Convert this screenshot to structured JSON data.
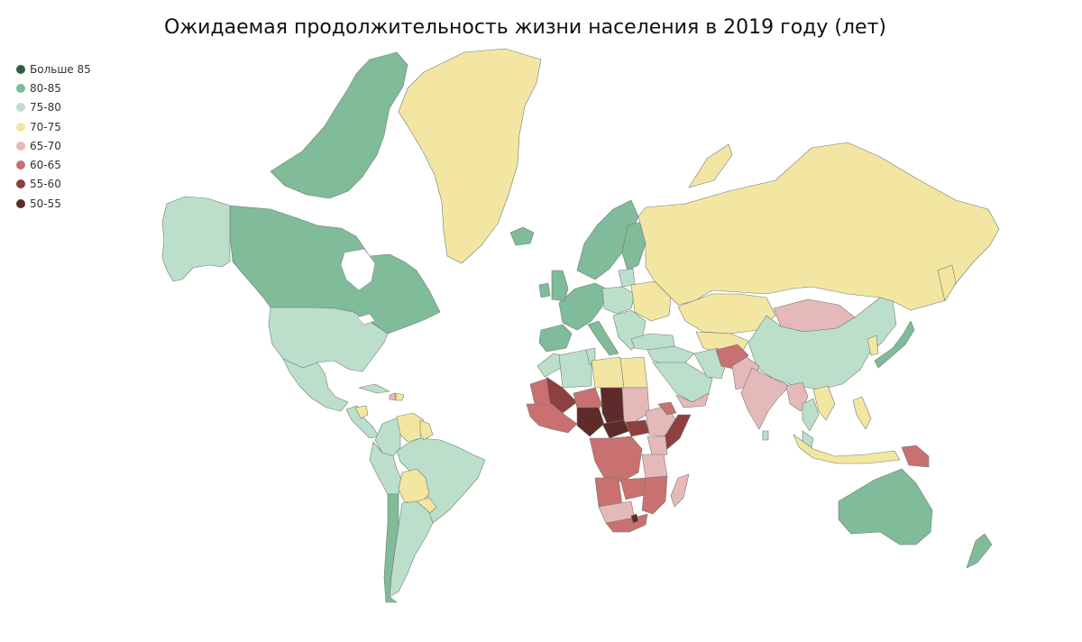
{
  "title": "Ожидаемая продолжительность жизни населения в 2019 году (лет)",
  "legend": [
    {
      "label": "Больше 85",
      "color": "#2f5f43"
    },
    {
      "label": "80-85",
      "color": "#80bb9a"
    },
    {
      "label": "75-80",
      "color": "#bcdfcc"
    },
    {
      "label": "70-75",
      "color": "#f3e6a2"
    },
    {
      "label": "65-70",
      "color": "#e5b9b9"
    },
    {
      "label": "60-65",
      "color": "#c97070"
    },
    {
      "label": "55-60",
      "color": "#8e3f3f"
    },
    {
      "label": "50-55",
      "color": "#5e2a2a"
    }
  ],
  "regions": [
    {
      "name": "Canada",
      "category": "80-85"
    },
    {
      "name": "Canadian Arctic Archipelago",
      "category": "80-85"
    },
    {
      "name": "Alaska",
      "category": "75-80"
    },
    {
      "name": "Greenland",
      "category": "70-75"
    },
    {
      "name": "United States",
      "category": "75-80"
    },
    {
      "name": "Mexico",
      "category": "75-80"
    },
    {
      "name": "Central America",
      "category": "75-80"
    },
    {
      "name": "Guatemala-Honduras",
      "category": "70-75"
    },
    {
      "name": "Cuba",
      "category": "75-80"
    },
    {
      "name": "Haiti",
      "category": "65-70"
    },
    {
      "name": "Dominican Republic",
      "category": "70-75"
    },
    {
      "name": "Brazil",
      "category": "75-80"
    },
    {
      "name": "Colombia",
      "category": "75-80"
    },
    {
      "name": "Venezuela",
      "category": "70-75"
    },
    {
      "name": "Guyana",
      "category": "70-75"
    },
    {
      "name": "Peru-Ecuador",
      "category": "75-80"
    },
    {
      "name": "Bolivia",
      "category": "70-75"
    },
    {
      "name": "Paraguay",
      "category": "70-75"
    },
    {
      "name": "Argentina",
      "category": "75-80"
    },
    {
      "name": "Chile",
      "category": "80-85"
    },
    {
      "name": "Iceland",
      "category": "80-85"
    },
    {
      "name": "Scandinavia",
      "category": "80-85"
    },
    {
      "name": "Finland",
      "category": "80-85"
    },
    {
      "name": "Baltics",
      "category": "75-80"
    },
    {
      "name": "Western Europe",
      "category": "80-85"
    },
    {
      "name": "United Kingdom",
      "category": "80-85"
    },
    {
      "name": "Ireland",
      "category": "80-85"
    },
    {
      "name": "Iberia",
      "category": "80-85"
    },
    {
      "name": "Italy",
      "category": "80-85"
    },
    {
      "name": "Central Europe",
      "category": "75-80"
    },
    {
      "name": "Balkans",
      "category": "75-80"
    },
    {
      "name": "Belarus-Ukraine",
      "category": "70-75"
    },
    {
      "name": "Russia",
      "category": "70-75"
    },
    {
      "name": "Novaya Zemlya",
      "category": "70-75"
    },
    {
      "name": "Sakhalin",
      "category": "70-75"
    },
    {
      "name": "Kazakhstan",
      "category": "70-75"
    },
    {
      "name": "Central Asia",
      "category": "70-75"
    },
    {
      "name": "Mongolia",
      "category": "65-70"
    },
    {
      "name": "China",
      "category": "75-80"
    },
    {
      "name": "Korea",
      "category": "70-75"
    },
    {
      "name": "Japan",
      "category": "80-85"
    },
    {
      "name": "Turkey",
      "category": "75-80"
    },
    {
      "name": "Middle East",
      "category": "75-80"
    },
    {
      "name": "Arabian Peninsula",
      "category": "75-80"
    },
    {
      "name": "Yemen",
      "category": "65-70"
    },
    {
      "name": "Iran",
      "category": "75-80"
    },
    {
      "name": "Afghanistan",
      "category": "60-65"
    },
    {
      "name": "Pakistan",
      "category": "65-70"
    },
    {
      "name": "India",
      "category": "65-70"
    },
    {
      "name": "Sri Lanka",
      "category": "75-80"
    },
    {
      "name": "Myanmar",
      "category": "65-70"
    },
    {
      "name": "Thailand",
      "category": "75-80"
    },
    {
      "name": "Indochina",
      "category": "70-75"
    },
    {
      "name": "Malaysia",
      "category": "75-80"
    },
    {
      "name": "Indonesia",
      "category": "70-75"
    },
    {
      "name": "Philippines",
      "category": "70-75"
    },
    {
      "name": "Papua New Guinea",
      "category": "60-65"
    },
    {
      "name": "Australia",
      "category": "80-85"
    },
    {
      "name": "New Zealand",
      "category": "80-85"
    },
    {
      "name": "Morocco",
      "category": "75-80"
    },
    {
      "name": "Algeria",
      "category": "75-80"
    },
    {
      "name": "Tunisia",
      "category": "75-80"
    },
    {
      "name": "Libya",
      "category": "70-75"
    },
    {
      "name": "Egypt",
      "category": "70-75"
    },
    {
      "name": "Mauritania",
      "category": "60-65"
    },
    {
      "name": "Mali",
      "category": "55-60"
    },
    {
      "name": "Niger",
      "category": "60-65"
    },
    {
      "name": "Chad",
      "category": "50-55"
    },
    {
      "name": "Sudan",
      "category": "65-70"
    },
    {
      "name": "West Africa coast",
      "category": "60-65"
    },
    {
      "name": "Nigeria",
      "category": "50-55"
    },
    {
      "name": "Central African Republic",
      "category": "50-55"
    },
    {
      "name": "South Sudan",
      "category": "55-60"
    },
    {
      "name": "Ethiopia",
      "category": "65-70"
    },
    {
      "name": "Somalia",
      "category": "55-60"
    },
    {
      "name": "Horn of Africa",
      "category": "60-65"
    },
    {
      "name": "Congo Basin",
      "category": "60-65"
    },
    {
      "name": "Kenya",
      "category": "65-70"
    },
    {
      "name": "Tanzania",
      "category": "65-70"
    },
    {
      "name": "Angola",
      "category": "60-65"
    },
    {
      "name": "Zambia",
      "category": "60-65"
    },
    {
      "name": "Mozambique",
      "category": "60-65"
    },
    {
      "name": "Namibia-Botswana",
      "category": "65-70"
    },
    {
      "name": "South Africa",
      "category": "60-65"
    },
    {
      "name": "Lesotho",
      "category": "50-55"
    },
    {
      "name": "Madagascar",
      "category": "65-70"
    }
  ]
}
